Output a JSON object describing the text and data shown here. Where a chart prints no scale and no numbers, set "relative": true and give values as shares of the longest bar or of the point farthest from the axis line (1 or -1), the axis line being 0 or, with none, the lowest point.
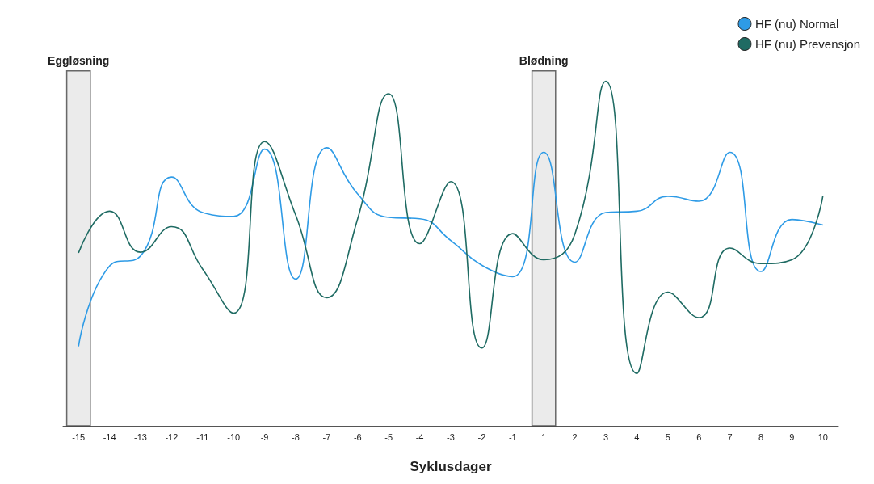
{
  "chart_data": {
    "type": "line",
    "relative": true,
    "xlabel": "Syklusdager",
    "categories": [
      "-15",
      "-14",
      "-13",
      "-12",
      "-11",
      "-10",
      "-9",
      "-8",
      "-7",
      "-6",
      "-5",
      "-4",
      "-3",
      "-2",
      "-1",
      "1",
      "2",
      "3",
      "4",
      "5",
      "6",
      "7",
      "8",
      "9",
      "10"
    ],
    "series": [
      {
        "name": "HF (nu) Normal",
        "color": "#2e9be6",
        "values": [
          0.231,
          0.464,
          0.493,
          0.722,
          0.619,
          0.608,
          0.803,
          0.426,
          0.807,
          0.673,
          0.605,
          0.601,
          0.538,
          0.466,
          0.433,
          0.794,
          0.475,
          0.619,
          0.623,
          0.666,
          0.652,
          0.794,
          0.448,
          0.599,
          0.583
        ]
      },
      {
        "name": "HF (nu) Prevensjon",
        "color": "#1f6b63",
        "values": [
          0.502,
          0.623,
          0.504,
          0.578,
          0.455,
          0.327,
          0.825,
          0.612,
          0.372,
          0.601,
          0.964,
          0.529,
          0.709,
          0.226,
          0.558,
          0.482,
          0.556,
          1,
          0.152,
          0.388,
          0.314,
          0.516,
          0.471,
          0.482,
          0.668
        ]
      }
    ],
    "bands": [
      {
        "axis": "x",
        "from": "-15",
        "to": "-15",
        "label": "Eggløsning",
        "color": "#e6e6e6"
      },
      {
        "axis": "x",
        "from": "1",
        "to": "1",
        "label": "Blødning",
        "color": "#e6e6e6"
      }
    ],
    "legend": "top right",
    "grid": false
  }
}
